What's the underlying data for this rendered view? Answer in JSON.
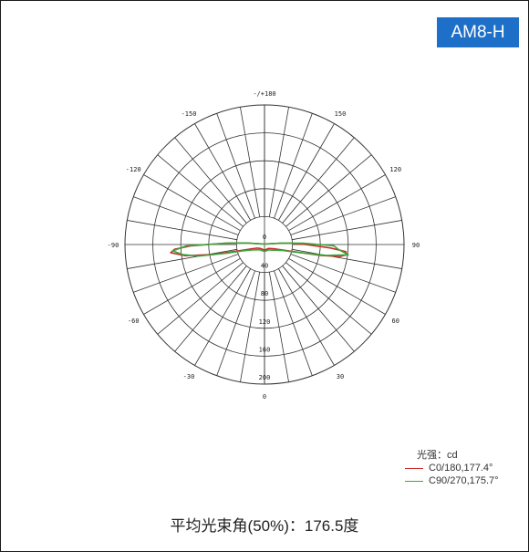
{
  "badge": "AM8-H",
  "legend": {
    "unit_label": "光强：cd",
    "entries": [
      {
        "label": "C0/180,177.4°",
        "color": "#cc2a2a"
      },
      {
        "label": "C90/270,175.7°",
        "color": "#3aa63a"
      }
    ]
  },
  "caption": "平均光束角(50%)：176.5度",
  "chart_data": {
    "type": "polar",
    "angle_labels": [
      {
        "angle": 180,
        "text": "-/+180"
      },
      {
        "angle": 150,
        "text": "150"
      },
      {
        "angle": 120,
        "text": "120"
      },
      {
        "angle": 90,
        "text": "90"
      },
      {
        "angle": 60,
        "text": "60"
      },
      {
        "angle": 30,
        "text": "30"
      },
      {
        "angle": 0,
        "text": "0"
      },
      {
        "angle": -30,
        "text": "-30"
      },
      {
        "angle": -60,
        "text": "-60"
      },
      {
        "angle": -90,
        "text": "-90"
      },
      {
        "angle": -120,
        "text": "-120"
      },
      {
        "angle": -150,
        "text": "-150"
      }
    ],
    "center_label": "0",
    "radial_labels": [
      "40",
      "80",
      "120",
      "160",
      "200"
    ],
    "rlim": [
      0,
      200
    ],
    "series": [
      {
        "name": "C0/180,177.4°",
        "color": "#cc2a2a",
        "points": [
          [
            -100,
            5
          ],
          [
            -95,
            25
          ],
          [
            -92,
            56
          ],
          [
            -89,
            105
          ],
          [
            -87,
            129
          ],
          [
            -85,
            135
          ],
          [
            -82,
            115
          ],
          [
            -79,
            75
          ],
          [
            -76,
            35
          ],
          [
            -72,
            20
          ],
          [
            -65,
            12
          ],
          [
            -45,
            8
          ],
          [
            0,
            8
          ],
          [
            45,
            8
          ],
          [
            65,
            14
          ],
          [
            72,
            24
          ],
          [
            76,
            40
          ],
          [
            79,
            82
          ],
          [
            81,
            110
          ],
          [
            83,
            119
          ],
          [
            85,
            117
          ],
          [
            87,
            95
          ],
          [
            90,
            59
          ],
          [
            93,
            37
          ],
          [
            96,
            15
          ],
          [
            100,
            5
          ]
        ]
      },
      {
        "name": "C90/270,175.7°",
        "color": "#3aa63a",
        "points": [
          [
            -100,
            5
          ],
          [
            -95,
            26
          ],
          [
            -92,
            55
          ],
          [
            -89,
            112
          ],
          [
            -86,
            132
          ],
          [
            -83,
            118
          ],
          [
            -80,
            95
          ],
          [
            -77,
            55
          ],
          [
            -73,
            30
          ],
          [
            -66,
            19
          ],
          [
            -55,
            13
          ],
          [
            -40,
            10
          ],
          [
            0,
            10
          ],
          [
            40,
            10
          ],
          [
            55,
            14
          ],
          [
            66,
            20
          ],
          [
            72,
            28
          ],
          [
            76,
            45
          ],
          [
            80,
            90
          ],
          [
            83,
            121
          ],
          [
            86,
            107
          ],
          [
            89,
            99
          ],
          [
            92,
            55
          ],
          [
            95,
            24
          ],
          [
            100,
            5
          ]
        ]
      }
    ]
  }
}
